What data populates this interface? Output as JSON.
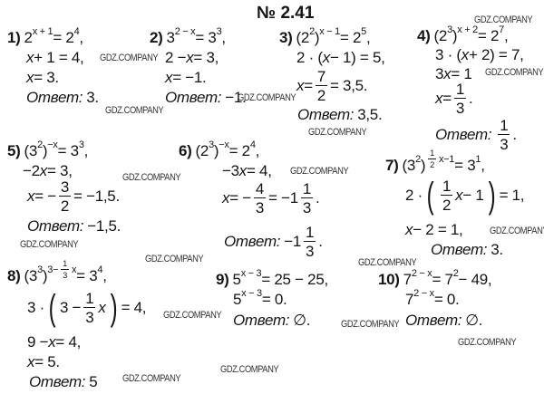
{
  "title": "№ 2.41",
  "answer_label": "Ответ:",
  "watermark": "GDZ.COMPANY",
  "problems": [
    {
      "num": "1)",
      "lines": [
        [
          {
            "t": "2"
          },
          {
            "sup": [
              {
                "t": "x + 1"
              }
            ]
          },
          {
            "t": " = 2"
          },
          {
            "sup": [
              {
                "t": "4"
              }
            ]
          },
          {
            "t": ","
          }
        ],
        [
          {
            "i": "x"
          },
          {
            "t": " + 1 = 4,"
          }
        ],
        [
          {
            "i": "x"
          },
          {
            "t": " = 3."
          }
        ],
        [
          {
            "ans": true
          },
          {
            "t": "3."
          }
        ]
      ]
    },
    {
      "num": "2)",
      "lines": [
        [
          {
            "t": "3"
          },
          {
            "sup": [
              {
                "t": "2 − x"
              }
            ]
          },
          {
            "t": " = 3"
          },
          {
            "sup": [
              {
                "t": "3"
              }
            ]
          },
          {
            "t": ","
          }
        ],
        [
          {
            "t": "2 − "
          },
          {
            "i": "x"
          },
          {
            "t": " = 3,"
          }
        ],
        [
          {
            "i": "x"
          },
          {
            "t": " = −1."
          }
        ],
        [
          {
            "ans": true
          },
          {
            "t": "−1."
          }
        ]
      ]
    },
    {
      "num": "3)",
      "lines": [
        [
          {
            "t": "(2"
          },
          {
            "sup": [
              {
                "t": "2"
              }
            ]
          },
          {
            "t": ")"
          },
          {
            "sup": [
              {
                "t": "x − 1"
              }
            ]
          },
          {
            "t": " = 2"
          },
          {
            "sup": [
              {
                "t": "5"
              }
            ]
          },
          {
            "t": ","
          }
        ],
        [
          {
            "t": "2 · ("
          },
          {
            "i": "x"
          },
          {
            "t": " − 1) = 5,"
          }
        ],
        [
          {
            "i": "x"
          },
          {
            "t": " = "
          },
          {
            "frac": [
              "7",
              "2"
            ]
          },
          {
            "t": " = 3,5."
          }
        ],
        [
          {
            "ans": true
          },
          {
            "t": "3,5."
          }
        ]
      ]
    },
    {
      "num": "4)",
      "lines": [
        [
          {
            "t": "(2"
          },
          {
            "sup": [
              {
                "t": "3"
              }
            ]
          },
          {
            "t": ")"
          },
          {
            "sup": [
              {
                "t": "x + 2"
              }
            ]
          },
          {
            "t": " = 2"
          },
          {
            "sup": [
              {
                "t": "7"
              }
            ]
          },
          {
            "t": ","
          }
        ],
        [
          {
            "t": "3 · ("
          },
          {
            "i": "x"
          },
          {
            "t": " + 2) = 7,"
          }
        ],
        [
          {
            "t": "3"
          },
          {
            "i": "x"
          },
          {
            "t": " = 1"
          }
        ],
        [
          {
            "i": "x"
          },
          {
            "t": " = "
          },
          {
            "frac": [
              "1",
              "3"
            ]
          },
          {
            "t": "."
          }
        ],
        [
          {
            "ans": true
          },
          {
            "frac": [
              "1",
              "3"
            ]
          },
          {
            "t": "."
          }
        ]
      ]
    },
    {
      "num": "5)",
      "lines": [
        [
          {
            "t": "(3"
          },
          {
            "sup": [
              {
                "t": "2"
              }
            ]
          },
          {
            "t": ")"
          },
          {
            "sup": [
              {
                "t": "−x"
              }
            ]
          },
          {
            "t": " = 3"
          },
          {
            "sup": [
              {
                "t": "3"
              }
            ]
          },
          {
            "t": ","
          }
        ],
        [
          {
            "t": "−2"
          },
          {
            "i": "x"
          },
          {
            "t": " = 3,"
          }
        ],
        [
          {
            "i": "x"
          },
          {
            "t": " = −"
          },
          {
            "frac": [
              "3",
              "2"
            ]
          },
          {
            "t": " = −1,5."
          }
        ],
        [
          {
            "ans": true
          },
          {
            "t": "−1,5."
          }
        ]
      ]
    },
    {
      "num": "6)",
      "lines": [
        [
          {
            "t": "(2"
          },
          {
            "sup": [
              {
                "t": "3"
              }
            ]
          },
          {
            "t": ")"
          },
          {
            "sup": [
              {
                "t": "−x"
              }
            ]
          },
          {
            "t": " = 2"
          },
          {
            "sup": [
              {
                "t": "4"
              }
            ]
          },
          {
            "t": ","
          }
        ],
        [
          {
            "t": "−3"
          },
          {
            "i": "x"
          },
          {
            "t": " = 4,"
          }
        ],
        [
          {
            "i": "x"
          },
          {
            "t": " = −"
          },
          {
            "frac": [
              "4",
              "3"
            ]
          },
          {
            "t": " = −1"
          },
          {
            "frac": [
              "1",
              "3"
            ]
          },
          {
            "t": "."
          }
        ],
        [
          {
            "ans": true
          },
          {
            "t": "−1"
          },
          {
            "frac": [
              "1",
              "3"
            ]
          },
          {
            "t": "."
          }
        ]
      ]
    },
    {
      "num": "7)",
      "lines": [
        [
          {
            "t": "(3"
          },
          {
            "sup": [
              {
                "t": "2"
              }
            ]
          },
          {
            "t": ")"
          },
          {
            "sup": [
              {
                "frac": [
                  "1",
                  "2"
                ]
              },
              {
                "t": "x−1"
              }
            ]
          },
          {
            "t": " = 3"
          },
          {
            "sup": [
              {
                "t": "1"
              }
            ]
          },
          {
            "t": ","
          }
        ],
        [
          {
            "t": "2 ·"
          },
          {
            "big": "("
          },
          {
            "frac": [
              "1",
              "2"
            ]
          },
          {
            "i": "x"
          },
          {
            "t": " − 1"
          },
          {
            "big": ")"
          },
          {
            "t": " = 1,"
          }
        ],
        [
          {
            "i": "x"
          },
          {
            "t": " − 2 = 1,"
          }
        ],
        [
          {
            "ans": true
          },
          {
            "t": "3."
          }
        ]
      ]
    },
    {
      "num": "8)",
      "lines": [
        [
          {
            "t": "(3"
          },
          {
            "sup": [
              {
                "t": "3"
              }
            ]
          },
          {
            "t": ")"
          },
          {
            "sup": [
              {
                "t": "3−"
              },
              {
                "frac": [
                  "1",
                  "3"
                ]
              },
              {
                "t": "x"
              }
            ]
          },
          {
            "t": " = 3"
          },
          {
            "sup": [
              {
                "t": "4"
              }
            ]
          },
          {
            "t": ","
          }
        ],
        [
          {
            "t": "3 ·"
          },
          {
            "big": "("
          },
          {
            "t": "3 − "
          },
          {
            "frac": [
              "1",
              "3"
            ]
          },
          {
            "i": "x"
          },
          {
            "big": ")"
          },
          {
            "t": " = 4,"
          }
        ],
        [
          {
            "t": "9 − "
          },
          {
            "i": "x"
          },
          {
            "t": " = 4,"
          }
        ],
        [
          {
            "i": "x"
          },
          {
            "t": " = 5."
          }
        ],
        [
          {
            "ans": true
          },
          {
            "t": "5"
          }
        ]
      ]
    },
    {
      "num": "9)",
      "lines": [
        [
          {
            "t": "5"
          },
          {
            "sup": [
              {
                "t": "x − 3"
              }
            ]
          },
          {
            "t": " = 25 − 25,"
          }
        ],
        [
          {
            "t": "5"
          },
          {
            "sup": [
              {
                "t": "x − 3"
              }
            ]
          },
          {
            "t": " = 0."
          }
        ],
        [
          {
            "ans": true
          },
          {
            "t": "∅."
          }
        ]
      ]
    },
    {
      "num": "10)",
      "lines": [
        [
          {
            "t": "7"
          },
          {
            "sup": [
              {
                "t": "2 − x"
              }
            ]
          },
          {
            "t": " = 7"
          },
          {
            "sup": [
              {
                "t": "2"
              }
            ]
          },
          {
            "t": " − 49,"
          }
        ],
        [
          {
            "t": "7"
          },
          {
            "sup": [
              {
                "t": "2 − x"
              }
            ]
          },
          {
            "t": " = 0."
          }
        ],
        [
          {
            "ans": true
          },
          {
            "t": "∅."
          }
        ]
      ]
    }
  ]
}
